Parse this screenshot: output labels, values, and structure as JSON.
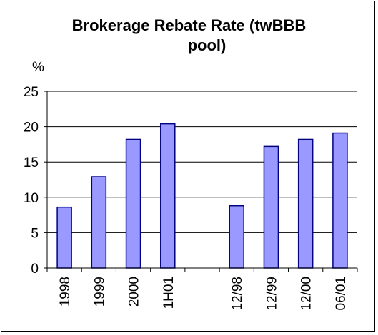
{
  "chart_data": {
    "type": "bar",
    "title_lines": [
      "Brokerage Rebate Rate (twBBB",
      "pool)"
    ],
    "ylabel": "%",
    "xlabel": "",
    "ylim": [
      0,
      25
    ],
    "yticks": [
      "0",
      "5",
      "10",
      "15",
      "20",
      "25"
    ],
    "grid": true,
    "categories": [
      "1998",
      "1999",
      "2000",
      "1H01",
      "",
      "12/98",
      "12/99",
      "12/00",
      "06/01"
    ],
    "values": [
      8.6,
      12.9,
      18.2,
      20.4,
      null,
      8.8,
      17.2,
      18.2,
      19.1
    ],
    "colors": {
      "bar_fill": "#9999ff",
      "bar_stroke": "#000080",
      "grid": "#000000"
    }
  }
}
